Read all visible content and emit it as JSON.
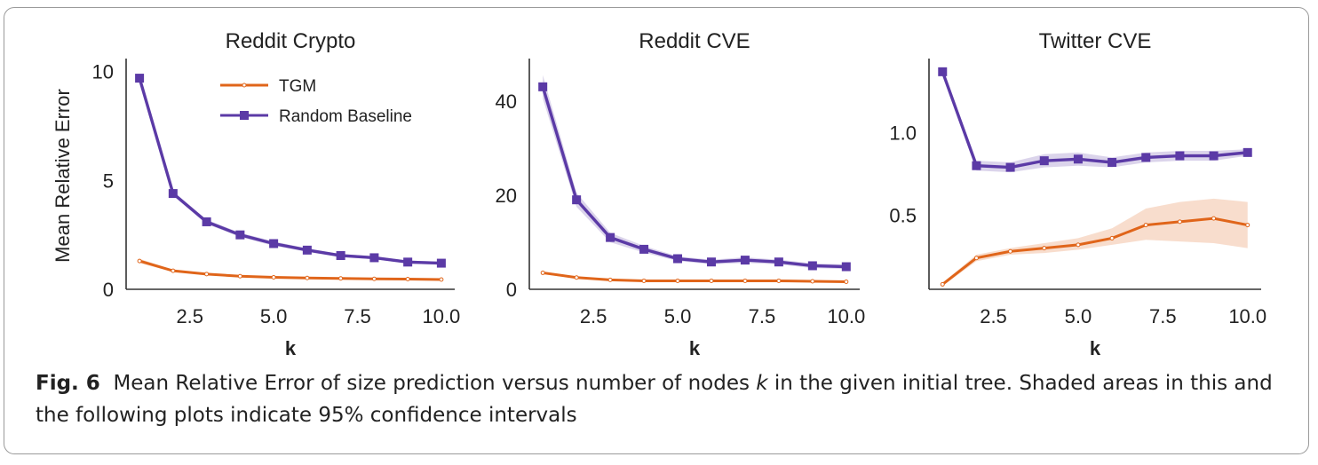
{
  "caption": {
    "label": "Fig. 6",
    "text_before_k": "Mean Relative Error of size prediction versus number of nodes ",
    "k": "k",
    "text_after_k": " in the given initial tree. Shaded areas in this and the following plots indicate 95% confidence intervals"
  },
  "colors": {
    "tgm": "#e0651a",
    "baseline": "#5b3aa6",
    "axis": "#333333",
    "text": "#222222"
  },
  "chart_data": [
    {
      "type": "line",
      "title": "Reddit Crypto",
      "xlabel": "k",
      "ylabel": "Mean Relative Error",
      "xlim": [
        0.6,
        10.4
      ],
      "ylim": [
        0,
        10.6
      ],
      "xticks": [
        2.5,
        5.0,
        7.5,
        10.0
      ],
      "xtick_labels": [
        "2.5",
        "5.0",
        "7.5",
        "10.0"
      ],
      "yticks": [
        0,
        5,
        10
      ],
      "ytick_labels": [
        "0",
        "5",
        "10"
      ],
      "legend": "top-right",
      "x": [
        1,
        2,
        3,
        4,
        5,
        6,
        7,
        8,
        9,
        10
      ],
      "series": [
        {
          "name": "TGM",
          "marker": "x",
          "values": [
            1.3,
            0.85,
            0.7,
            0.6,
            0.55,
            0.52,
            0.5,
            0.48,
            0.47,
            0.45
          ],
          "ci_low": [
            1.2,
            0.8,
            0.65,
            0.56,
            0.51,
            0.48,
            0.46,
            0.44,
            0.43,
            0.42
          ],
          "ci_high": [
            1.4,
            0.9,
            0.75,
            0.64,
            0.59,
            0.56,
            0.54,
            0.52,
            0.51,
            0.48
          ]
        },
        {
          "name": "Random Baseline",
          "marker": "s",
          "values": [
            9.7,
            4.4,
            3.1,
            2.5,
            2.1,
            1.8,
            1.55,
            1.45,
            1.25,
            1.2
          ],
          "ci_low": [
            9.6,
            4.3,
            3.0,
            2.4,
            2.0,
            1.72,
            1.48,
            1.38,
            1.18,
            1.13
          ],
          "ci_high": [
            9.8,
            4.5,
            3.2,
            2.6,
            2.2,
            1.88,
            1.62,
            1.52,
            1.32,
            1.27
          ]
        }
      ]
    },
    {
      "type": "line",
      "title": "Reddit CVE",
      "xlabel": "k",
      "ylabel": "",
      "xlim": [
        0.6,
        10.4
      ],
      "ylim": [
        0,
        49
      ],
      "xticks": [
        2.5,
        5.0,
        7.5,
        10.0
      ],
      "xtick_labels": [
        "2.5",
        "5.0",
        "7.5",
        "10.0"
      ],
      "yticks": [
        0,
        20,
        40
      ],
      "ytick_labels": [
        "0",
        "20",
        "40"
      ],
      "legend": "none",
      "x": [
        1,
        2,
        3,
        4,
        5,
        6,
        7,
        8,
        9,
        10
      ],
      "series": [
        {
          "name": "TGM",
          "marker": "x",
          "values": [
            3.5,
            2.5,
            2.0,
            1.8,
            1.8,
            1.8,
            1.8,
            1.8,
            1.7,
            1.6
          ],
          "ci_low": [
            3.2,
            2.3,
            1.8,
            1.6,
            1.6,
            1.6,
            1.6,
            1.6,
            1.5,
            1.4
          ],
          "ci_high": [
            3.8,
            2.7,
            2.2,
            2.0,
            2.0,
            2.0,
            2.0,
            2.0,
            1.9,
            1.8
          ]
        },
        {
          "name": "Random Baseline",
          "marker": "s",
          "values": [
            43,
            19,
            11,
            8.5,
            6.5,
            5.8,
            6.2,
            5.8,
            5.0,
            4.8
          ],
          "ci_low": [
            40.5,
            17.5,
            10.0,
            7.8,
            6.0,
            5.3,
            5.6,
            5.3,
            4.5,
            4.3
          ],
          "ci_high": [
            45.5,
            20.5,
            12.0,
            9.2,
            7.0,
            6.3,
            6.8,
            6.3,
            5.5,
            5.3
          ]
        }
      ]
    },
    {
      "type": "line",
      "title": "Twitter CVE",
      "xlabel": "k",
      "ylabel": "",
      "xlim": [
        0.6,
        10.4
      ],
      "ylim": [
        0.05,
        1.45
      ],
      "xticks": [
        2.5,
        5.0,
        7.5,
        10.0
      ],
      "xtick_labels": [
        "2.5",
        "5.0",
        "7.5",
        "10.0"
      ],
      "yticks": [
        0.5,
        1.0
      ],
      "ytick_labels": [
        "0.5",
        "1.0"
      ],
      "legend": "none",
      "x": [
        1,
        2,
        3,
        4,
        5,
        6,
        7,
        8,
        9,
        10
      ],
      "series": [
        {
          "name": "TGM",
          "marker": "x",
          "values": [
            0.08,
            0.24,
            0.28,
            0.3,
            0.32,
            0.36,
            0.44,
            0.46,
            0.48,
            0.44
          ],
          "ci_low": [
            0.07,
            0.22,
            0.26,
            0.27,
            0.29,
            0.32,
            0.35,
            0.34,
            0.33,
            0.3
          ],
          "ci_high": [
            0.09,
            0.26,
            0.3,
            0.33,
            0.36,
            0.42,
            0.54,
            0.58,
            0.6,
            0.58
          ]
        },
        {
          "name": "Random Baseline",
          "marker": "s",
          "values": [
            1.37,
            0.8,
            0.79,
            0.83,
            0.84,
            0.82,
            0.85,
            0.86,
            0.86,
            0.88
          ],
          "ci_low": [
            1.35,
            0.77,
            0.76,
            0.79,
            0.8,
            0.79,
            0.82,
            0.83,
            0.83,
            0.86
          ],
          "ci_high": [
            1.39,
            0.83,
            0.82,
            0.87,
            0.88,
            0.85,
            0.88,
            0.89,
            0.89,
            0.9
          ]
        }
      ]
    }
  ]
}
